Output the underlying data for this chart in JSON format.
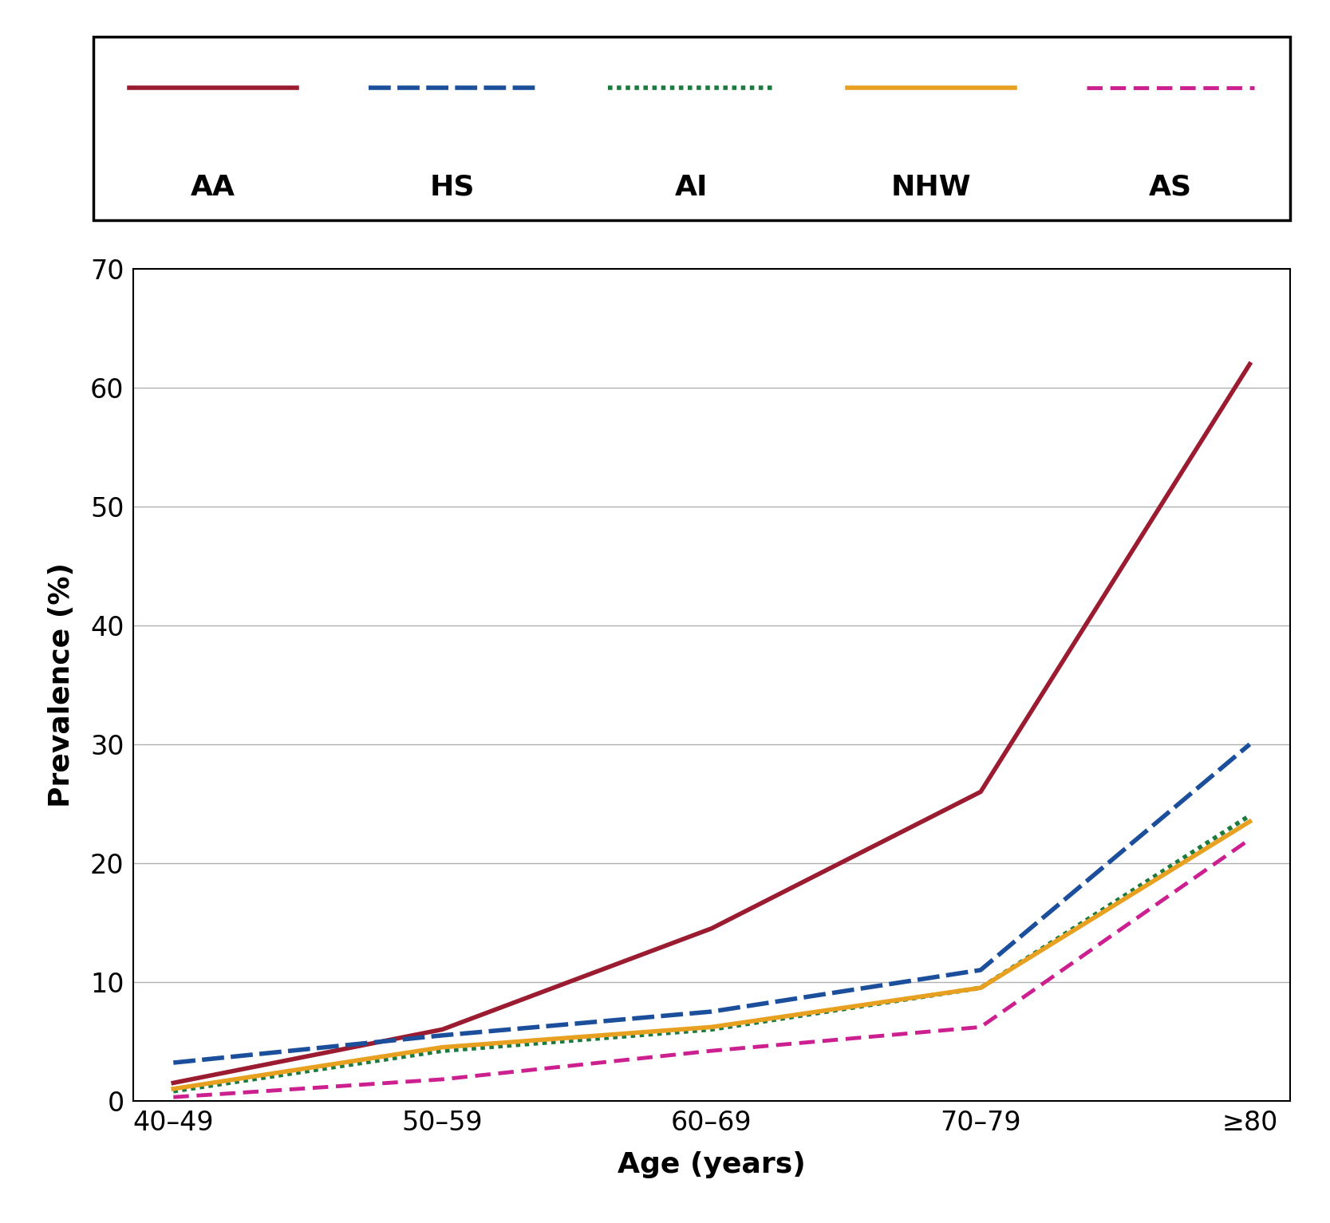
{
  "x_labels": [
    "40–49",
    "50–59",
    "60–69",
    "70–79",
    "≥80"
  ],
  "x_positions": [
    0,
    1,
    2,
    3,
    4
  ],
  "series": [
    {
      "name": "AA",
      "color": "#9B1B30",
      "linestyle": "solid",
      "linewidth": 4.0,
      "values": [
        1.5,
        6.0,
        14.5,
        26.0,
        62.0
      ]
    },
    {
      "name": "HS",
      "color": "#1B4F9B",
      "linestyle": "dashed",
      "linewidth": 4.0,
      "dash_pattern": [
        6,
        2
      ],
      "values": [
        3.2,
        5.5,
        7.5,
        11.0,
        30.0
      ]
    },
    {
      "name": "AI",
      "color": "#1B7A3E",
      "linestyle": "dotted",
      "linewidth": 4.0,
      "dash_pattern": [
        1,
        1
      ],
      "values": [
        0.8,
        4.2,
        6.0,
        9.5,
        24.0
      ]
    },
    {
      "name": "NHW",
      "color": "#E8A020",
      "linestyle": "solid",
      "linewidth": 4.0,
      "values": [
        1.0,
        4.5,
        6.2,
        9.5,
        23.5
      ]
    },
    {
      "name": "AS",
      "color": "#CC2090",
      "linestyle": "dashed",
      "linewidth": 3.5,
      "dash_pattern": [
        4,
        2
      ],
      "values": [
        0.3,
        1.8,
        4.2,
        6.2,
        22.0
      ]
    }
  ],
  "xlabel": "Age (years)",
  "ylabel": "Prevalence (%)",
  "ylim": [
    0,
    70
  ],
  "yticks": [
    0,
    10,
    20,
    30,
    40,
    50,
    60,
    70
  ],
  "grid_color": "#b0b0b0",
  "background_color": "#ffffff",
  "legend_fontsize": 26,
  "axis_fontsize": 26,
  "tick_fontsize": 24
}
